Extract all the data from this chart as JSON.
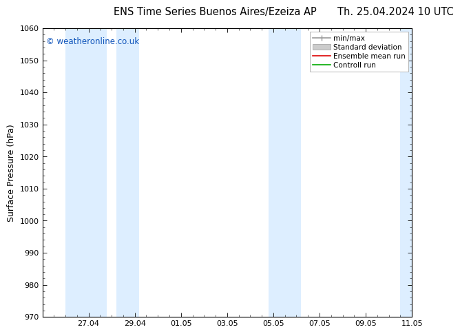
{
  "title_left": "ENS Time Series Buenos Aires/Ezeiza AP",
  "title_right": "Th. 25.04.2024 10 UTC",
  "ylabel": "Surface Pressure (hPa)",
  "ylim": [
    970,
    1060
  ],
  "yticks": [
    970,
    980,
    990,
    1000,
    1010,
    1020,
    1030,
    1040,
    1050,
    1060
  ],
  "xlim": [
    0,
    16
  ],
  "xtick_labels": [
    "27.04",
    "29.04",
    "01.05",
    "03.05",
    "05.05",
    "07.05",
    "09.05",
    "11.05"
  ],
  "xtick_positions_days": [
    2,
    4,
    6,
    8,
    10,
    12,
    14,
    16
  ],
  "shaded_bands": [
    {
      "start_day": 1.0,
      "end_day": 2.8,
      "color": "#ddeeff",
      "alpha": 1.0
    },
    {
      "start_day": 3.2,
      "end_day": 4.2,
      "color": "#ddeeff",
      "alpha": 1.0
    },
    {
      "start_day": 9.8,
      "end_day": 11.2,
      "color": "#ddeeff",
      "alpha": 1.0
    },
    {
      "start_day": 15.5,
      "end_day": 16.0,
      "color": "#ddeeff",
      "alpha": 1.0
    }
  ],
  "watermark_text": "© weatheronline.co.uk",
  "watermark_color": "#1155bb",
  "legend_entries": [
    {
      "label": "min/max",
      "color": "#999999",
      "lw": 1.2
    },
    {
      "label": "Standard deviation",
      "color": "#cccccc",
      "lw": 5
    },
    {
      "label": "Ensemble mean run",
      "color": "#dd0000",
      "lw": 1.2
    },
    {
      "label": "Controll run",
      "color": "#00aa00",
      "lw": 1.2
    }
  ],
  "background_color": "#ffffff",
  "plot_bg_color": "#ffffff",
  "title_fontsize": 10.5,
  "ylabel_fontsize": 9,
  "tick_fontsize": 8,
  "legend_fontsize": 7.5,
  "watermark_fontsize": 8.5
}
